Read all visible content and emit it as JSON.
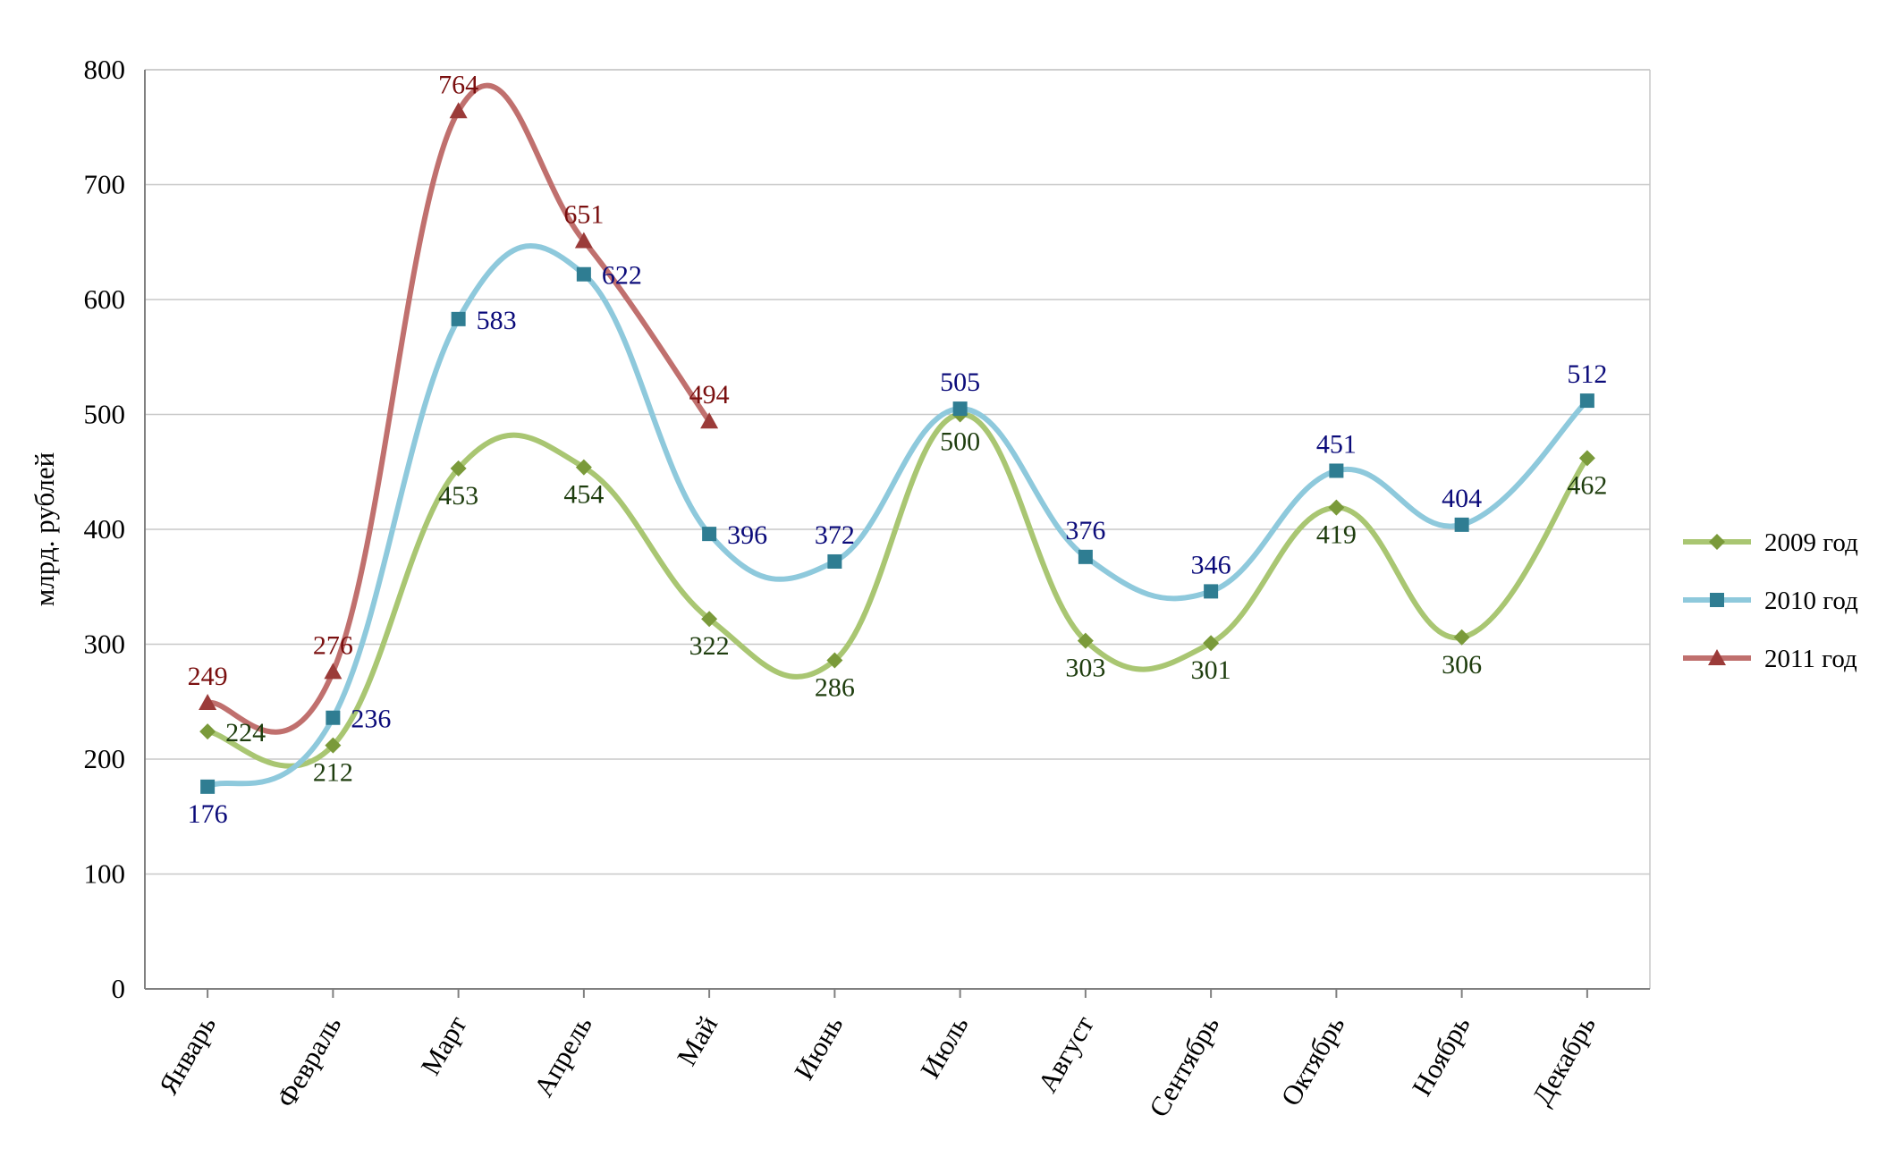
{
  "chart_data": {
    "type": "line",
    "title": "",
    "xlabel": "",
    "ylabel": "млрд. рублей",
    "ylim": [
      0,
      800
    ],
    "yticks": [
      "0",
      "100",
      "200",
      "300",
      "400",
      "500",
      "600",
      "700",
      "800"
    ],
    "grid": true,
    "legend_position": "right",
    "smooth": true,
    "categories": [
      "Январь",
      "Февраль",
      "Март",
      "Апрель",
      "Май",
      "Июнь",
      "Июль",
      "Август",
      "Сентябрь",
      "Октябрь",
      "Ноябрь",
      "Декабрь"
    ],
    "series": [
      {
        "name": "2009 год",
        "values": [
          224,
          212,
          453,
          454,
          322,
          286,
          500,
          303,
          301,
          419,
          306,
          462
        ],
        "line_color": "#a9c672",
        "marker_color": "#7a9a3a",
        "label_color": "#1e3d0e",
        "marker": "diamond",
        "label_pos": [
          "right",
          "below",
          "below",
          "below",
          "below",
          "below",
          "below",
          "below",
          "below",
          "below",
          "below",
          "below"
        ]
      },
      {
        "name": "2010 год",
        "values": [
          176,
          236,
          583,
          622,
          396,
          372,
          505,
          376,
          346,
          451,
          404,
          512
        ],
        "line_color": "#8ec9dc",
        "marker_color": "#2f7d92",
        "label_color": "#0b0b7a",
        "marker": "square",
        "label_pos": [
          "below",
          "right",
          "right",
          "right",
          "right",
          "above",
          "above",
          "above",
          "above",
          "above",
          "above",
          "above"
        ]
      },
      {
        "name": "2011 год",
        "values": [
          249,
          276,
          764,
          651,
          494,
          null,
          null,
          null,
          null,
          null,
          null,
          null
        ],
        "line_color": "#c0706e",
        "marker_color": "#9b3b39",
        "label_color": "#7a0f0f",
        "marker": "triangle",
        "label_pos": [
          "above",
          "above",
          "above",
          "above",
          "above",
          "above",
          "above",
          "above",
          "above",
          "above",
          "above",
          "above"
        ]
      }
    ]
  }
}
